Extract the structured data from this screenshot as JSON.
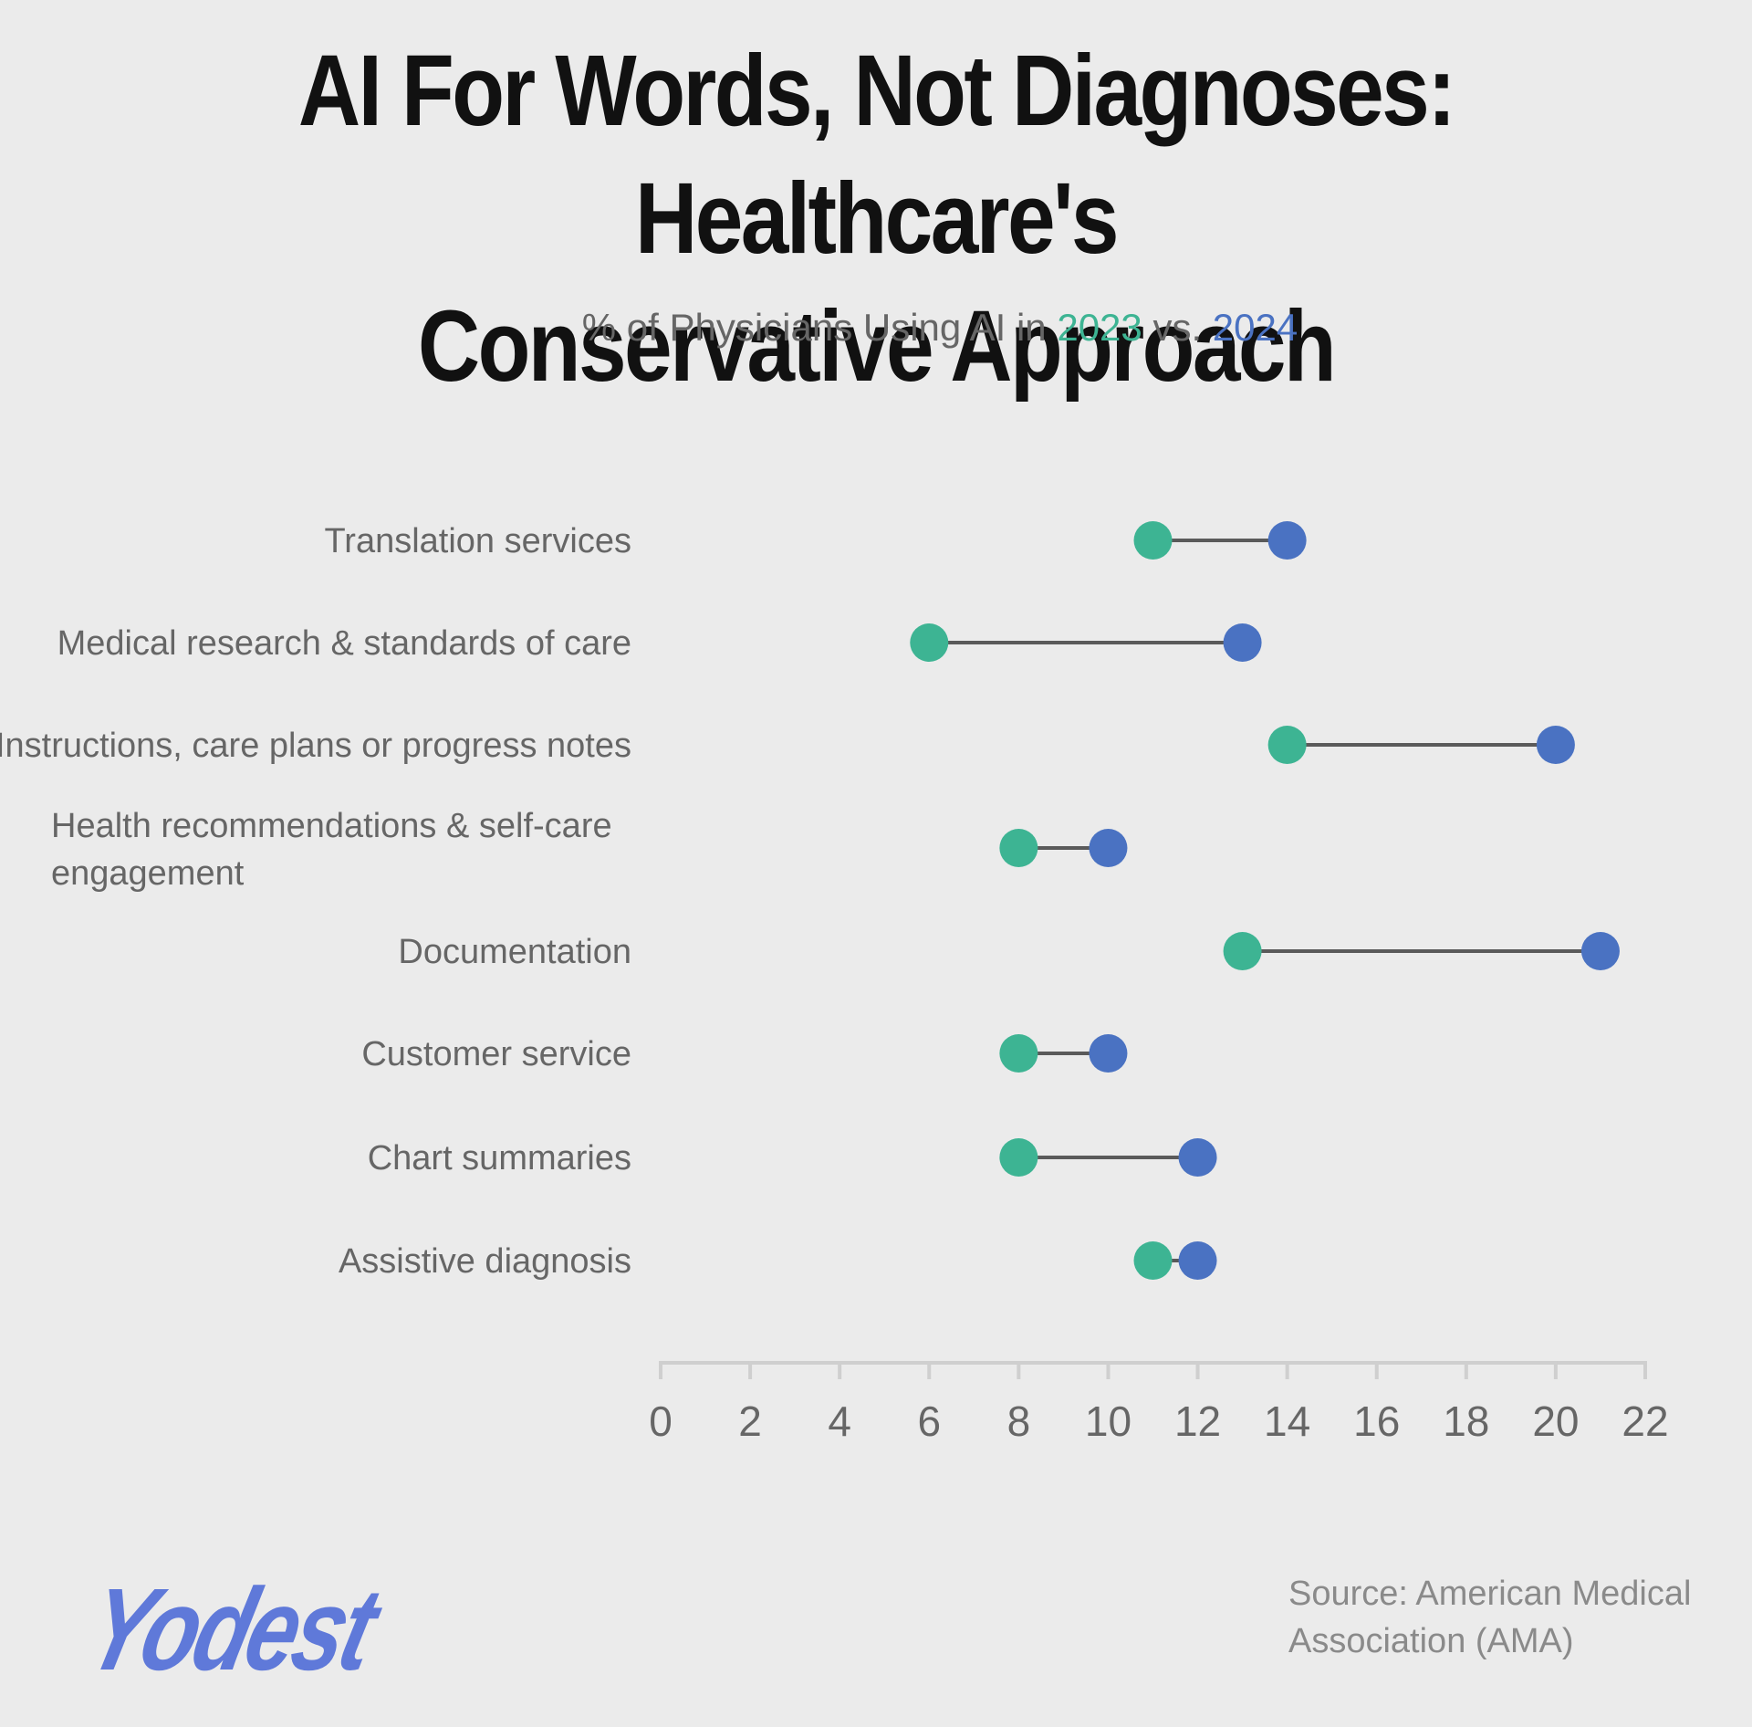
{
  "title_lines": [
    "AI For Words, Not Diagnoses: Healthcare's",
    "Conservative Approach"
  ],
  "subtitle": {
    "prefix": "% of Physicians Using AI in",
    "year_a": "2023",
    "middle": "vs.",
    "year_b": "2024"
  },
  "colors": {
    "year_2023": "#3db493",
    "year_2024": "#4a72c2",
    "connector": "#5a5a5a",
    "axis": "#cfcfcf"
  },
  "chart_data": {
    "type": "dumbbell",
    "categories": [
      "Translation services",
      "Medical research & standards of care",
      "Instructions, care plans or progress notes",
      "Health recommendations & self-care engagement",
      "Documentation",
      "Customer service",
      "Chart summaries",
      "Assistive diagnosis"
    ],
    "series": [
      {
        "name": "2023",
        "values": [
          11,
          6,
          14,
          8,
          13,
          8,
          8,
          11
        ]
      },
      {
        "name": "2024",
        "values": [
          14,
          13,
          20,
          10,
          21,
          10,
          12,
          12
        ]
      }
    ],
    "xticks": [
      0,
      2,
      4,
      6,
      8,
      10,
      12,
      14,
      16,
      18,
      20,
      22
    ],
    "xlim": [
      0,
      22
    ],
    "grid": false
  },
  "source_lines": [
    "Source: American Medical",
    "Association (AMA)"
  ],
  "logo_text": "Yodest"
}
